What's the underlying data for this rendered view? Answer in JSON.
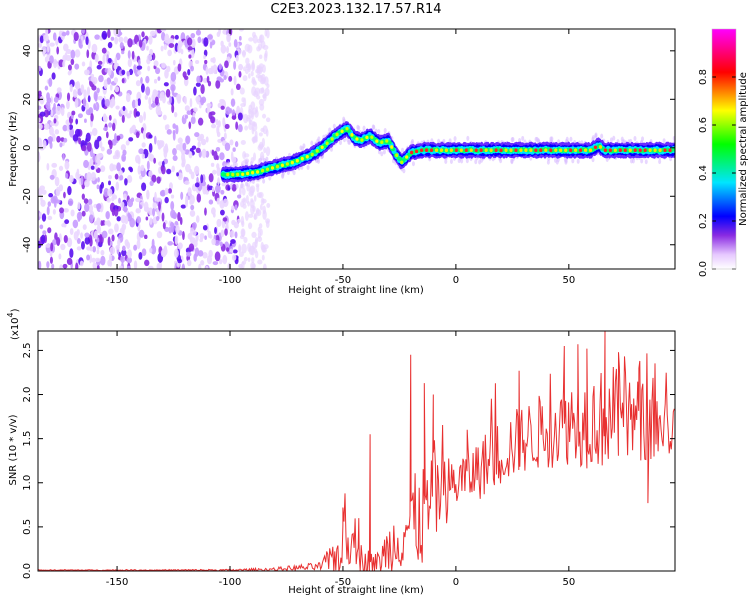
{
  "title": "C2E3.2023.132.17.57.R14",
  "chart_data": [
    {
      "type": "heatmap",
      "xlabel": "Height of straight line (km)",
      "ylabel": "Frequency (Hz)",
      "xlim": [
        -185,
        97
      ],
      "ylim": [
        -50,
        49
      ],
      "x_ticks": [
        -150,
        -100,
        -50,
        0,
        50
      ],
      "y_ticks": [
        -40,
        -20,
        0,
        20,
        40
      ],
      "colorbar": {
        "label": "Normalized spectral amplitude",
        "range": [
          0,
          1
        ],
        "ticks": [
          0.0,
          0.2,
          0.4,
          0.6,
          0.8
        ],
        "colors": [
          "#ffffff",
          "#e6c8ff",
          "#6a00ff",
          "#0000ff",
          "#00e5ff",
          "#00ff00",
          "#ffff00",
          "#ff0000",
          "#ff00ff"
        ]
      },
      "noise_region_km": [
        -185,
        -95
      ],
      "ridge": {
        "x": [
          -103,
          -95,
          -88,
          -80,
          -72,
          -64,
          -58,
          -52,
          -48,
          -45,
          -42,
          -38,
          -34,
          -30,
          -27,
          -24,
          -20,
          -15,
          -10,
          0,
          10,
          20,
          30,
          40,
          50,
          60,
          63,
          66,
          70,
          80,
          90,
          97
        ],
        "y": [
          -11,
          -11,
          -10,
          -8,
          -6,
          -3,
          1,
          6,
          8,
          4,
          3,
          5,
          2,
          3,
          -2,
          -6,
          -2,
          -1,
          -1,
          -1,
          -1,
          -1,
          -1,
          -1,
          -1,
          -1,
          1,
          -1,
          -1,
          -1,
          -1,
          -1
        ]
      }
    },
    {
      "type": "line",
      "xlabel": "Height of straight line (km)",
      "ylabel": "SNR (10 * v/v)",
      "y_multiplier_label": "(x10",
      "y_multiplier_exp": "4",
      "y_multiplier_close": ")",
      "xlim": [
        -185,
        97
      ],
      "ylim": [
        0,
        2.72
      ],
      "x_ticks": [
        -150,
        -100,
        -50,
        0,
        50
      ],
      "y_ticks": [
        0.0,
        0.5,
        1.0,
        1.5,
        2.0,
        2.5
      ],
      "series": [
        {
          "color": "#e83030",
          "envelope_x": [
            -185,
            -150,
            -100,
            -80,
            -60,
            -52,
            -48,
            -45,
            -40,
            -35,
            -30,
            -25,
            -20,
            -15,
            -10,
            -5,
            0,
            10,
            20,
            30,
            40,
            50,
            60,
            70,
            80,
            90,
            97
          ],
          "envelope_mean": [
            0.01,
            0.01,
            0.01,
            0.02,
            0.05,
            0.2,
            0.35,
            0.2,
            0.12,
            0.08,
            0.25,
            0.4,
            0.55,
            0.6,
            0.8,
            0.9,
            1.0,
            1.15,
            1.35,
            1.5,
            1.6,
            1.7,
            1.7,
            1.75,
            1.7,
            1.65,
            1.6
          ],
          "envelope_amp": [
            0.005,
            0.005,
            0.01,
            0.02,
            0.05,
            0.25,
            0.3,
            0.2,
            0.15,
            0.12,
            0.3,
            0.4,
            0.5,
            0.6,
            0.55,
            0.4,
            0.3,
            0.35,
            0.4,
            0.4,
            0.45,
            0.5,
            0.55,
            0.6,
            0.5,
            0.4,
            0.3
          ],
          "peaks": [
            [
              -50,
              0.72
            ],
            [
              -43,
              0.6
            ],
            [
              -38,
              1.55
            ],
            [
              -20,
              2.45
            ],
            [
              -14,
              2.13
            ],
            [
              -10,
              2.0
            ],
            [
              5,
              1.6
            ],
            [
              28,
              2.27
            ],
            [
              48,
              2.55
            ],
            [
              54,
              2.57
            ],
            [
              58,
              2.52
            ],
            [
              66,
              2.72
            ],
            [
              72,
              2.48
            ],
            [
              81,
              2.3
            ],
            [
              85,
              0.77
            ]
          ]
        }
      ]
    }
  ]
}
